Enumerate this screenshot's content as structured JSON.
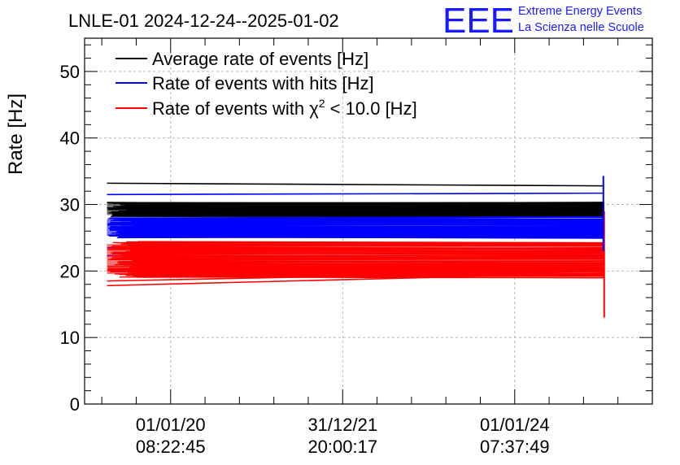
{
  "header": {
    "title": "LNLE-01 2024-12-24--2025-01-02",
    "logo_text": "EEE",
    "brand_line1": "Extreme Energy Events",
    "brand_line2": "La Scienza nelle Scuole",
    "brand_color": "#1a1aff"
  },
  "chart_data": {
    "type": "line",
    "title": "LNLE-01 2024-12-24--2025-01-02",
    "xlabel": "",
    "ylabel": "Rate [Hz]",
    "ylim": [
      0,
      55
    ],
    "yticks": [
      0,
      10,
      20,
      30,
      40,
      50
    ],
    "ytick_labels": [
      "0",
      "10",
      "20",
      "30",
      "40",
      "50"
    ],
    "grid": true,
    "legend_position": "top-left",
    "xlim": [
      -0.5,
      2.8
    ],
    "xticks": [
      {
        "pos": 0,
        "line1": "01/01/20",
        "line2": "08:22:45"
      },
      {
        "pos": 1,
        "line1": "31/12/21",
        "line2": "20:00:17"
      },
      {
        "pos": 2,
        "line1": "01/01/24",
        "line2": "07:37:49"
      }
    ],
    "x_start": -0.37,
    "x_end": 2.52,
    "series": [
      {
        "name": "Average rate of events [Hz]",
        "legend_main": "Average rate of events [Hz]",
        "color": "#000000",
        "band": [
          28.2,
          30.3
        ],
        "outliers": [
          [
            33.2,
            32.8
          ],
          [
            30.3,
            29.9
          ]
        ]
      },
      {
        "name": "Rate of events with hits [Hz]",
        "legend_main": "Rate of events with hits [Hz]",
        "color": "#0000ff",
        "band": [
          25.0,
          28.0
        ],
        "outliers": [
          [
            31.5,
            31.7
          ],
          [
            23.5,
            23.2
          ],
          [
            22.3,
            22.3
          ]
        ]
      },
      {
        "name": "Rate of events with χ² < 10.0 [Hz]",
        "legend_main": "Rate of events with χ",
        "legend_sup": "2",
        "legend_tail": " < 10.0 [Hz]",
        "color": "#ff0000",
        "band": [
          19.0,
          24.5
        ],
        "outliers": [
          [
            17.8,
            19.7
          ],
          [
            18.5,
            20.0
          ]
        ],
        "end_spike": [
          13.0,
          29.0
        ]
      }
    ]
  }
}
